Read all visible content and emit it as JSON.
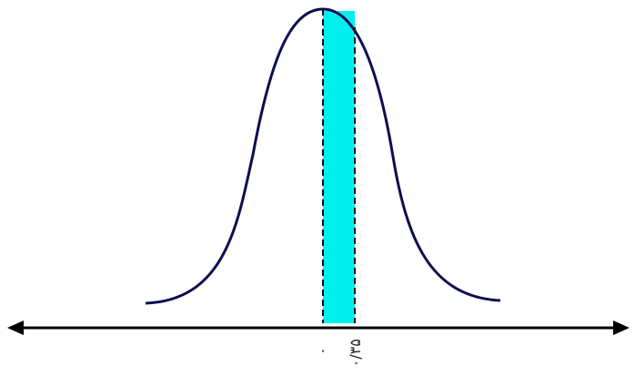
{
  "labels": {
    "zero": "۰",
    "z_value": "۰/۳۵"
  }
}
